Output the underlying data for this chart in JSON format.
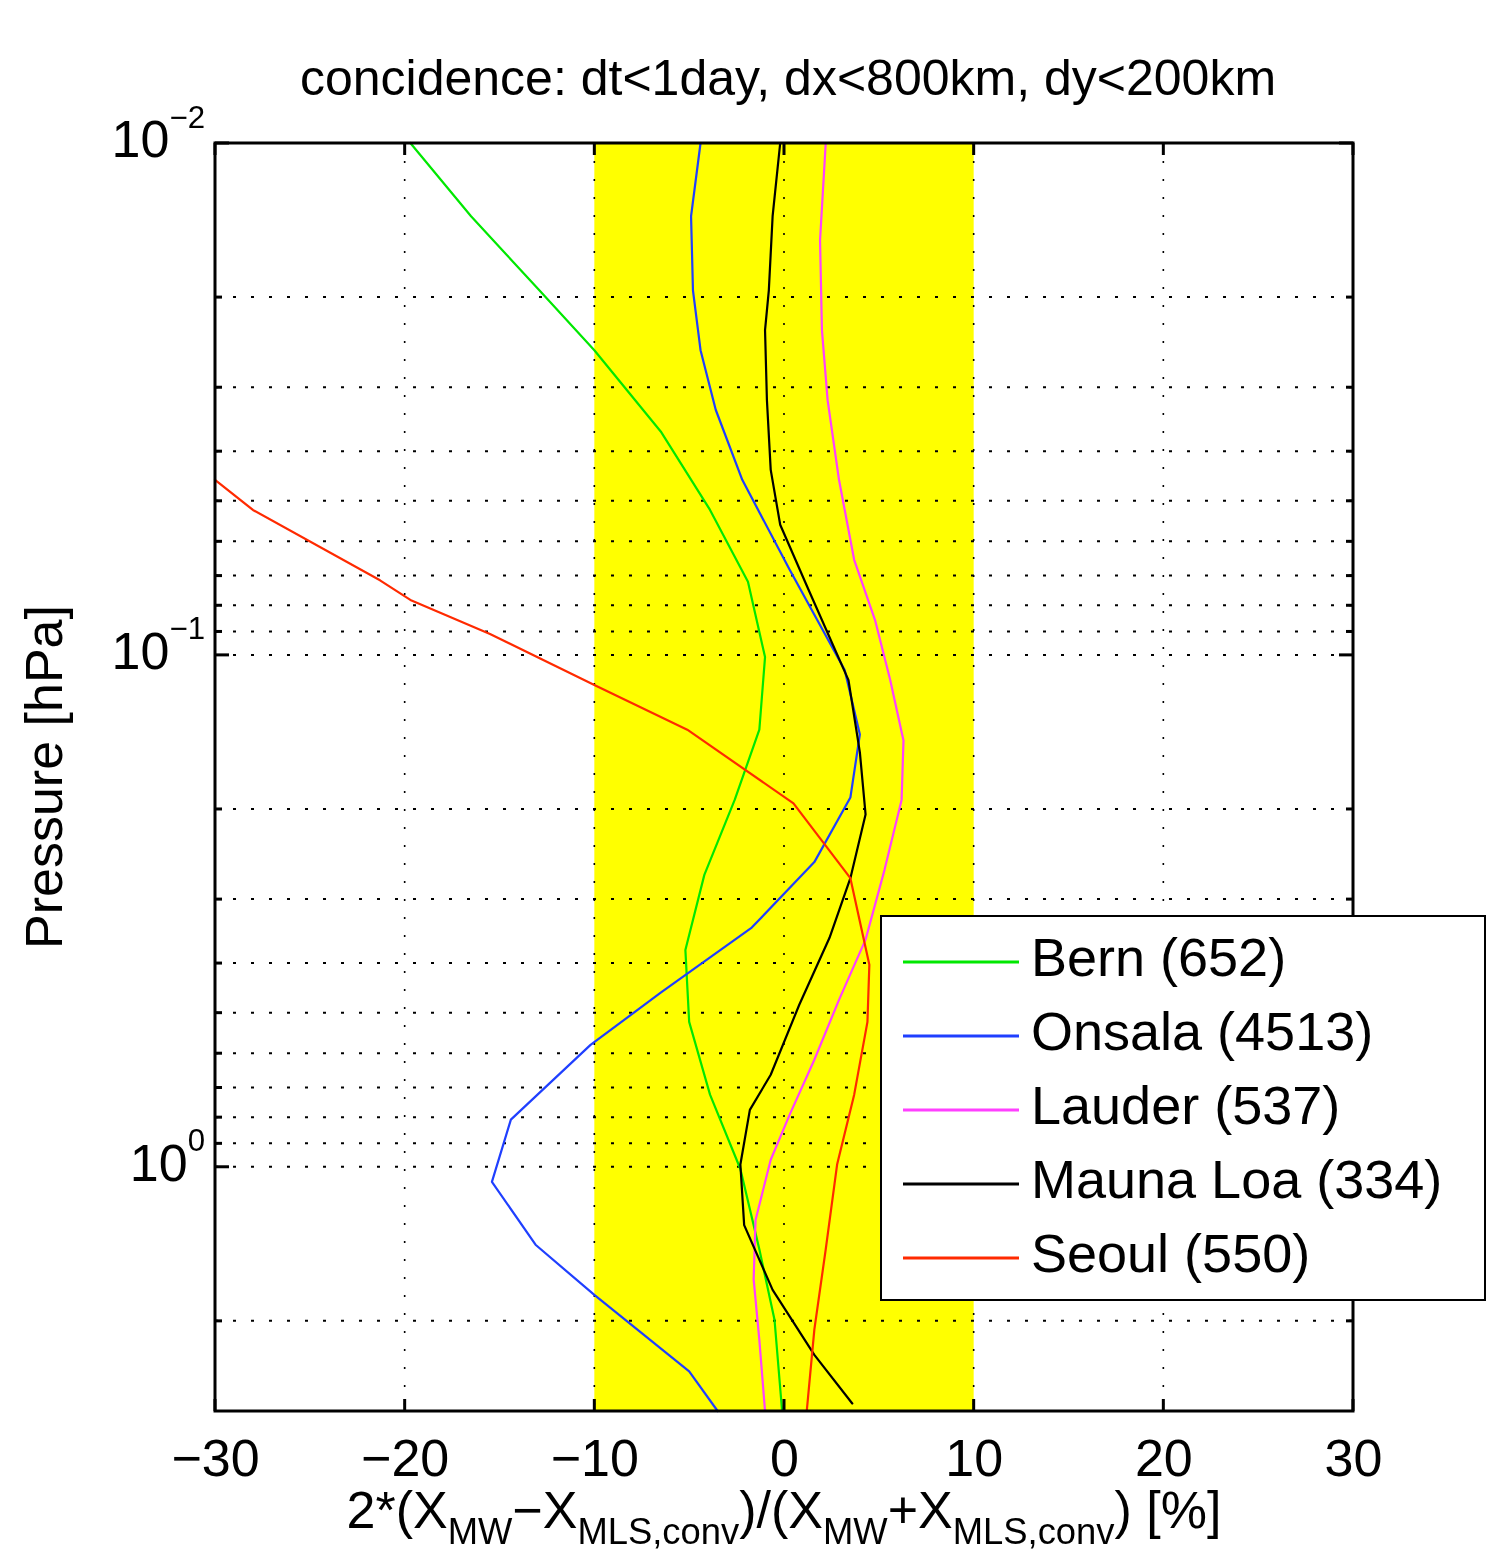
{
  "chart_data": {
    "type": "line",
    "title": "concidence: dt<1day, dx<800km, dy<200km",
    "xlabel": "2*(X$_{MW}$−X$_{MLS,conv}$)/(X$_{MW}$+X$_{MLS,conv}$) [%]",
    "ylabel": "Pressure [hPa]",
    "xlim": [
      -30,
      30
    ],
    "xticks": [
      {
        "value": -30,
        "label": "−30"
      },
      {
        "value": -20,
        "label": "−20"
      },
      {
        "value": -10,
        "label": "−10"
      },
      0,
      10,
      20,
      30
    ],
    "ylim": [
      3,
      0.01
    ],
    "log": "y",
    "yticks": [
      {
        "value": 0.01,
        "label": "10$^{−2}$"
      },
      {
        "value": 0.02,
        "label": null
      },
      {
        "value": 0.03,
        "label": null
      },
      {
        "value": 0.04,
        "label": null
      },
      {
        "value": 0.05,
        "label": null
      },
      {
        "value": 0.06,
        "label": null
      },
      {
        "value": 0.07,
        "label": null
      },
      {
        "value": 0.08,
        "label": null
      },
      {
        "value": 0.09,
        "label": null
      },
      {
        "value": 0.1,
        "label": "10$^{−1}$"
      },
      {
        "value": 0.2,
        "label": null
      },
      {
        "value": 0.3,
        "label": null
      },
      {
        "value": 0.4,
        "label": null
      },
      {
        "value": 0.5,
        "label": null
      },
      {
        "value": 0.6,
        "label": null
      },
      {
        "value": 0.7,
        "label": null
      },
      {
        "value": 0.8,
        "label": null
      },
      {
        "value": 0.9,
        "label": null
      },
      {
        "value": 1,
        "label": "10$^{0}$"
      },
      {
        "value": 2,
        "label": null
      }
    ],
    "grid": true,
    "legend": "right",
    "bands": [
      {
        "axis": "x",
        "from": -10,
        "to": 10,
        "color": "#ffff00"
      }
    ],
    "series": [
      {
        "name": "Bern (652)",
        "color": "#00e800",
        "x": [
          -19.7,
          -16.5,
          -12.9,
          -10.0,
          -6.5,
          -3.9,
          -1.9,
          -1.0,
          -1.3,
          -2.6,
          -4.2,
          -5.2,
          -5.0,
          -3.9,
          -2.3,
          -1.3,
          -0.5,
          -0.1
        ],
        "values": [
          0.01,
          0.0139,
          0.0194,
          0.0254,
          0.0366,
          0.0521,
          0.072,
          0.101,
          0.14,
          0.192,
          0.269,
          0.377,
          0.521,
          0.723,
          1.01,
          1.45,
          1.99,
          3.0
        ]
      },
      {
        "name": "Onsala (4513)",
        "color": "#1f3fff",
        "x": [
          -4.4,
          -4.9,
          -4.8,
          -4.4,
          -3.6,
          -2.2,
          0.3,
          3.2,
          4.0,
          3.5,
          1.6,
          -1.7,
          -6.5,
          -10.2,
          -14.4,
          -15.4,
          -13.1,
          -10.0,
          -5.0,
          -3.5
        ],
        "values": [
          0.01,
          0.0139,
          0.0194,
          0.0254,
          0.0332,
          0.0455,
          0.0682,
          0.107,
          0.143,
          0.19,
          0.254,
          0.341,
          0.457,
          0.578,
          0.809,
          1.07,
          1.42,
          1.78,
          2.51,
          3.0
        ]
      },
      {
        "name": "Lauder (537)",
        "color": "#ff40ff",
        "x": [
          2.2,
          1.9,
          2.0,
          2.3,
          2.9,
          3.7,
          4.8,
          5.6,
          6.3,
          6.2,
          5.3,
          4.3,
          2.9,
          1.6,
          0.3,
          -0.7,
          -1.5,
          -1.6,
          -1.3,
          -1.0
        ],
        "values": [
          0.01,
          0.0155,
          0.0232,
          0.0318,
          0.0455,
          0.0652,
          0.0855,
          0.112,
          0.147,
          0.192,
          0.263,
          0.36,
          0.472,
          0.618,
          0.791,
          0.969,
          1.27,
          1.66,
          2.18,
          3.0
        ]
      },
      {
        "name": "Mauna Loa (334)",
        "color": "#000000",
        "x": [
          -0.2,
          -0.6,
          -0.8,
          -1.0,
          -0.9,
          -0.7,
          -0.2,
          1.3,
          3.4,
          4.0,
          4.3,
          3.5,
          2.4,
          0.8,
          -0.7,
          -1.8,
          -2.3,
          -2.1,
          -0.6,
          1.6,
          3.6
        ],
        "values": [
          0.01,
          0.0139,
          0.0194,
          0.0232,
          0.0318,
          0.0435,
          0.0557,
          0.0747,
          0.112,
          0.155,
          0.205,
          0.273,
          0.357,
          0.483,
          0.661,
          0.774,
          0.99,
          1.3,
          1.74,
          2.33,
          2.9
        ]
      },
      {
        "name": "Seoul (550)",
        "color": "#ff2a00",
        "x": [
          -30,
          -28.0,
          -21.3,
          -19.7,
          -15.5,
          -10.0,
          -5.1,
          0.5,
          3.5,
          4.5,
          4.4,
          3.7,
          2.8,
          2.2,
          1.6,
          1.2
        ],
        "values": [
          0.0455,
          0.0521,
          0.0715,
          0.0781,
          0.091,
          0.1145,
          0.14,
          0.195,
          0.273,
          0.403,
          0.521,
          0.723,
          0.99,
          1.45,
          2.08,
          3.0
        ]
      }
    ]
  }
}
